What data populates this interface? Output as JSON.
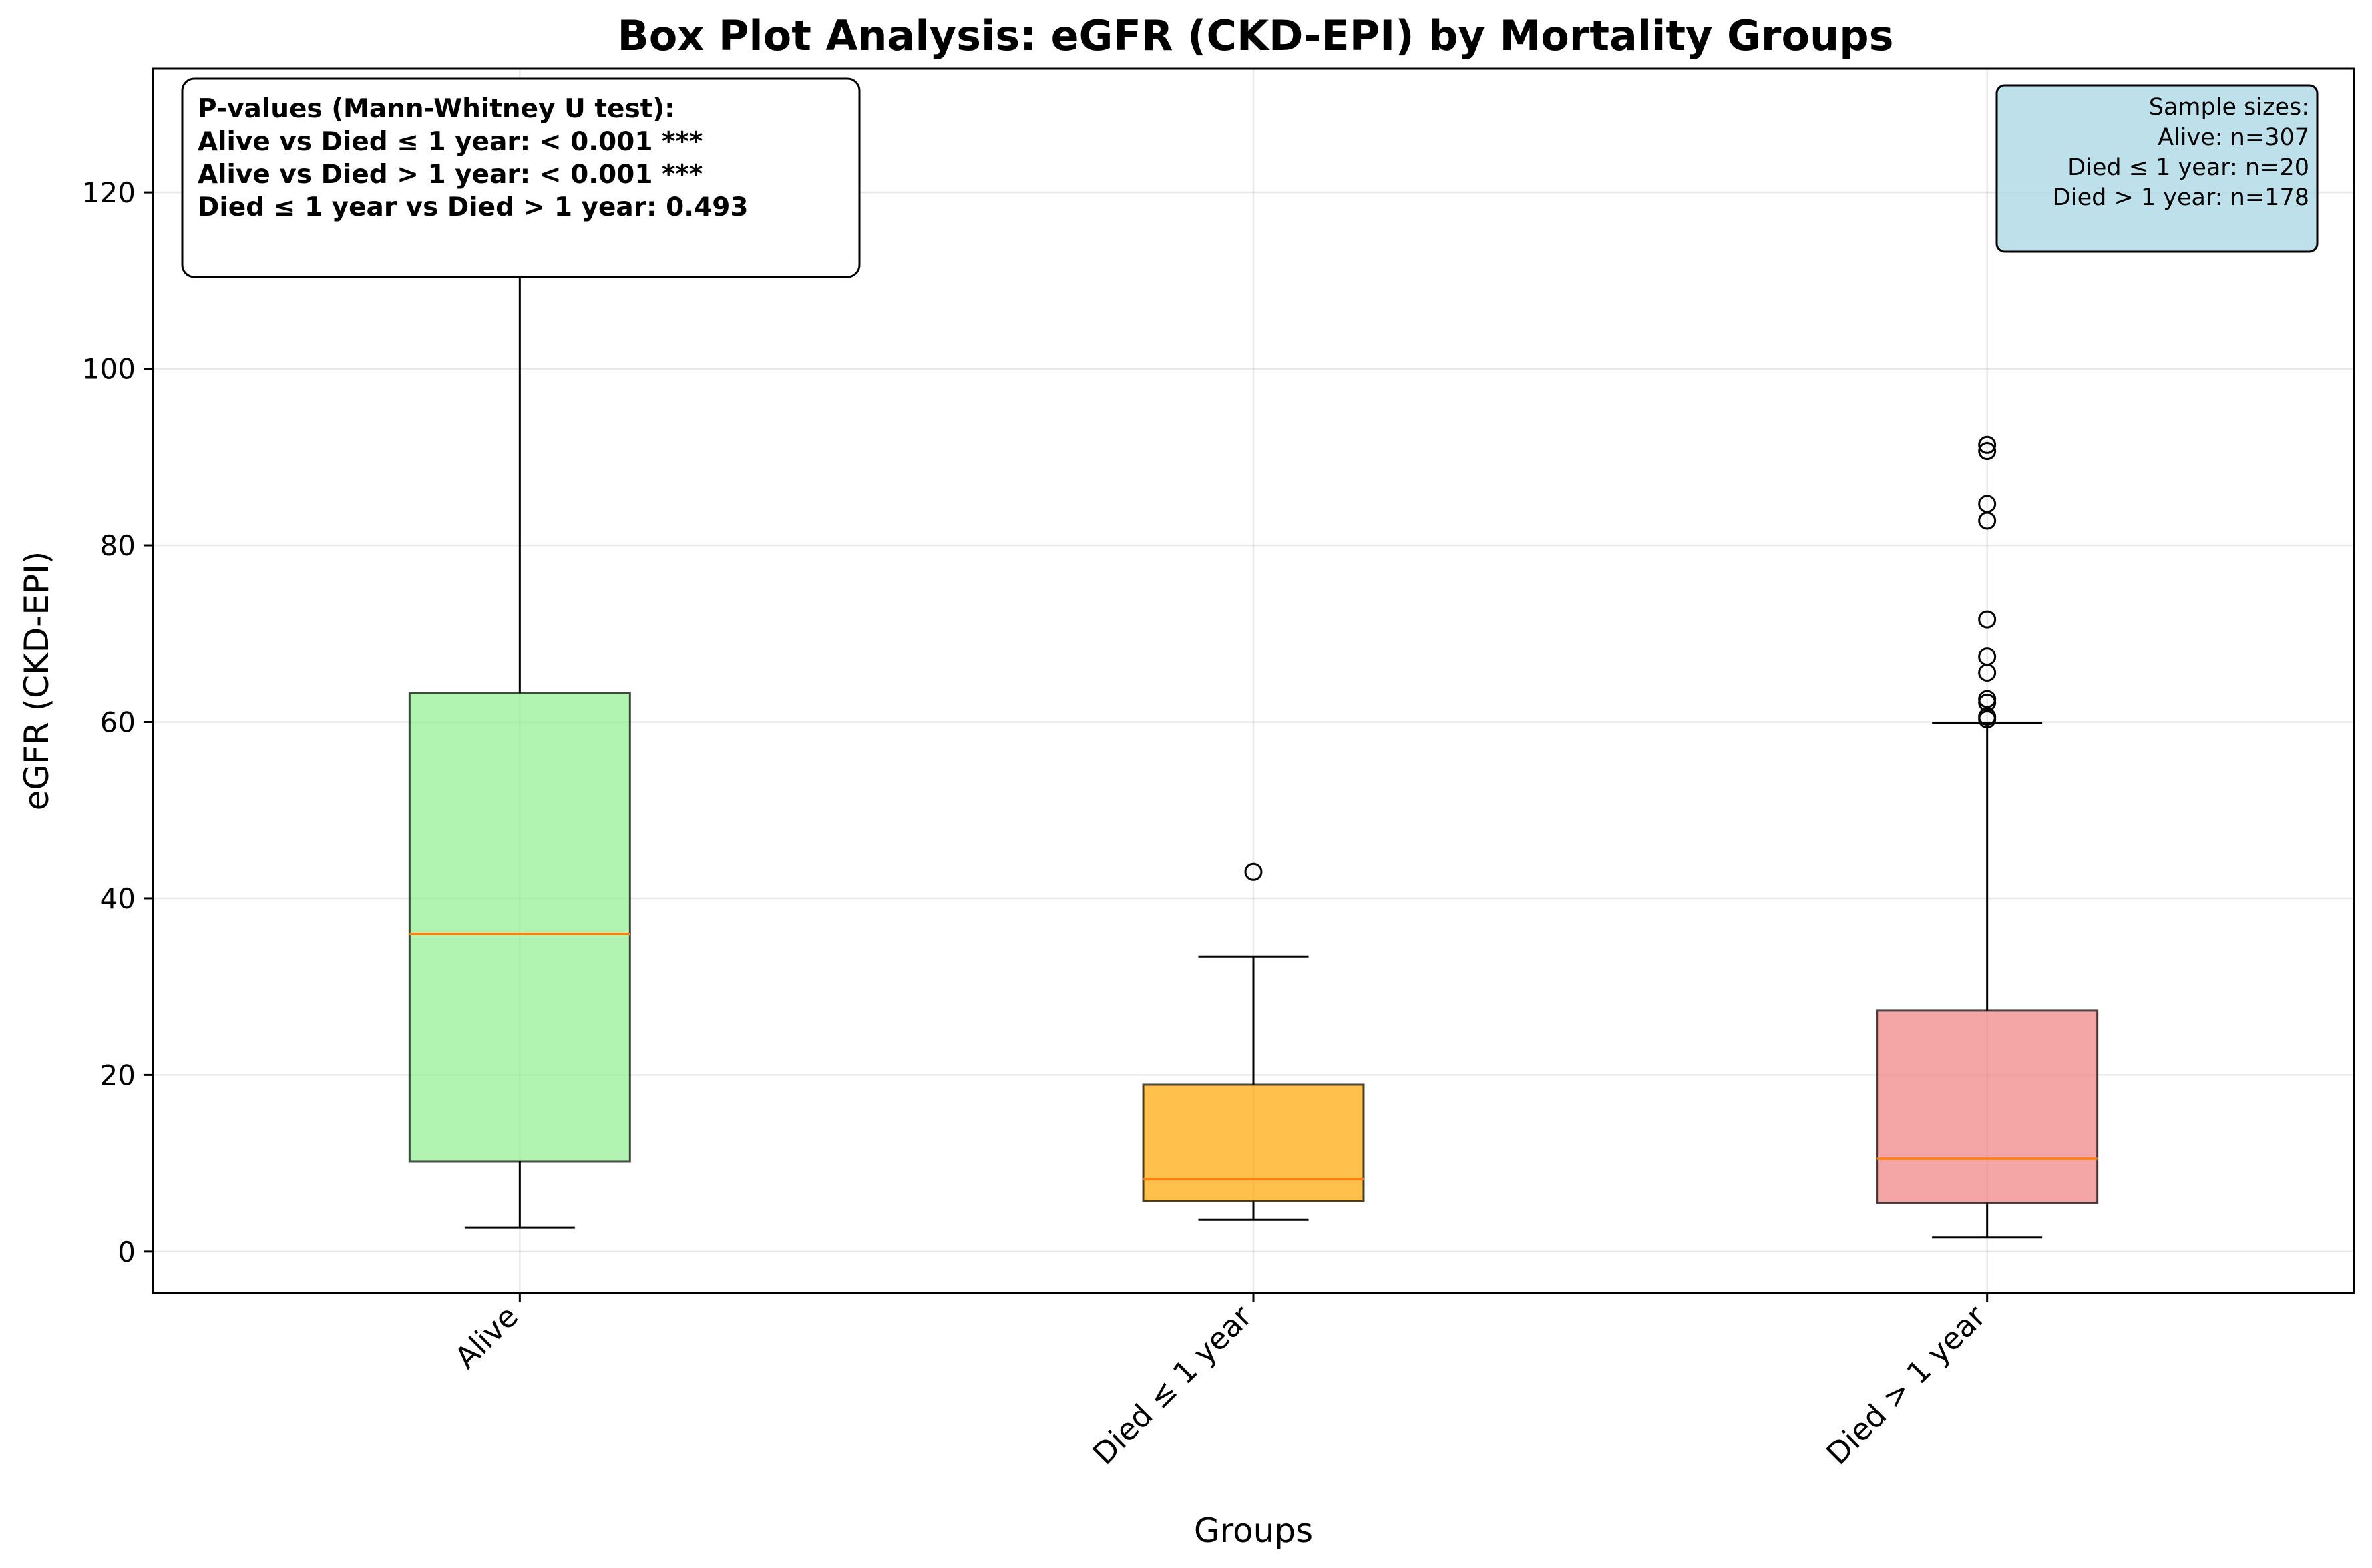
{
  "chart_data": {
    "type": "box",
    "title": "Box Plot Analysis: eGFR (CKD-EPI) by Mortality Groups",
    "xlabel": "Groups",
    "ylabel": "eGFR (CKD-EPI)",
    "ylim": [
      -4.7,
      134
    ],
    "yticks": [
      0,
      20,
      40,
      60,
      80,
      100,
      120
    ],
    "grid": true,
    "categories": [
      "Alive",
      "Died ≤ 1 year",
      "Died > 1 year"
    ],
    "boxes": [
      {
        "category": "Alive",
        "whisker_low": 2.7,
        "q1": 10.2,
        "median": 36.0,
        "q3": 63.3,
        "whisker_high": 113.5,
        "outliers": [],
        "color": "#90ee90"
      },
      {
        "category": "Died ≤ 1 year",
        "whisker_low": 3.6,
        "q1": 5.7,
        "median": 8.2,
        "q3": 18.9,
        "whisker_high": 33.4,
        "outliers": [
          43.0
        ],
        "color": "#ffa500"
      },
      {
        "category": "Died > 1 year",
        "whisker_low": 1.6,
        "q1": 5.5,
        "median": 10.5,
        "q3": 27.3,
        "whisker_high": 59.9,
        "outliers": [
          60.3,
          60.6,
          62.2,
          62.6,
          65.6,
          67.4,
          71.6,
          82.8,
          84.7,
          90.7,
          91.4
        ],
        "color": "#f08080"
      }
    ],
    "pvalue_box": {
      "lines": [
        "P-values (Mann-Whitney U test):",
        "Alive vs Died ≤ 1 year: < 0.001 ***",
        "Alive vs Died > 1 year: < 0.001 ***",
        "Died ≤ 1 year vs Died > 1 year: 0.493"
      ]
    },
    "sample_box": {
      "lines": [
        "Sample sizes:",
        "Alive: n=307",
        "Died ≤ 1 year: n=20",
        "Died > 1 year: n=178"
      ],
      "color": "#add8e6"
    },
    "median_color": "#ff7f0e"
  }
}
